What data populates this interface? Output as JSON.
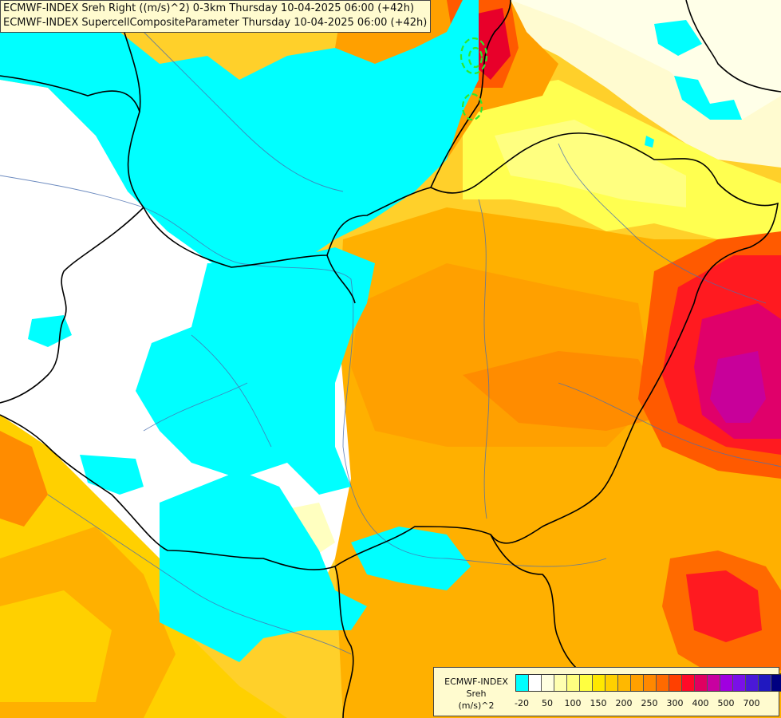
{
  "title": {
    "line1": "ECMWF-INDEX Sreh Right ((m/s)^2) 0-3km Thursday 10-04-2025 06:00 (+42h)",
    "line2": "ECMWF-INDEX SupercellCompositeParameter Thursday 10-04-2025 06:00 (+42h)"
  },
  "legend": {
    "source": "ECMWF-INDEX",
    "variable": "Sreh",
    "unit": "(m/s)^2",
    "colors": [
      "#00ffff",
      "#ffffff",
      "#ffffe0",
      "#ffffb0",
      "#ffff80",
      "#ffff40",
      "#ffe800",
      "#ffd000",
      "#ffb800",
      "#ffa000",
      "#ff8800",
      "#ff6a00",
      "#ff4000",
      "#ff0a28",
      "#e00060",
      "#c800a0",
      "#a000e0",
      "#7a10e8",
      "#4a18d8",
      "#2018c0",
      "#000080"
    ],
    "ticks": [
      {
        "label": "-20",
        "at": 0.5
      },
      {
        "label": "50",
        "at": 2.5
      },
      {
        "label": "100",
        "at": 4.5
      },
      {
        "label": "150",
        "at": 6.5
      },
      {
        "label": "200",
        "at": 8.5
      },
      {
        "label": "250",
        "at": 10.5
      },
      {
        "label": "300",
        "at": 12.5
      },
      {
        "label": "400",
        "at": 14.5
      },
      {
        "label": "500",
        "at": 16.5
      },
      {
        "label": "700",
        "at": 18.5
      }
    ]
  },
  "map": {
    "background_color": "#ffd24a",
    "low_color": "#00ffff",
    "neutral_color": "#ffffff",
    "high_color": "#e0006a",
    "supercell_contour_color": "#2ee82e"
  }
}
